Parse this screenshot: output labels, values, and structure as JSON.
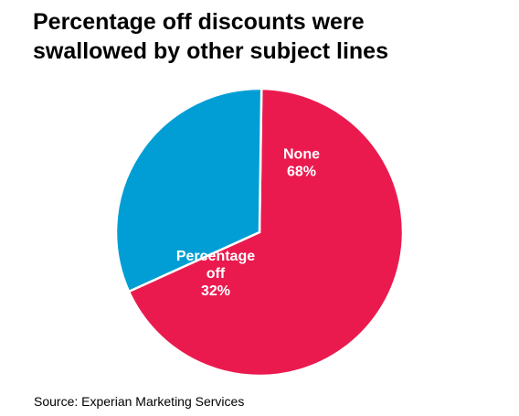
{
  "chart_data": {
    "type": "pie",
    "title_lines": [
      "Percentage off discounts were",
      "swallowed by other subject lines"
    ],
    "slices": [
      {
        "label_lines": [
          "None"
        ],
        "value_label": "68%",
        "value": 68,
        "color": "#ea1a4f"
      },
      {
        "label_lines": [
          "Percentage",
          "off"
        ],
        "value_label": "32%",
        "value": 32,
        "color": "#009ed4"
      }
    ],
    "source": "Source: Experian Marketing Services",
    "legend": "none"
  }
}
